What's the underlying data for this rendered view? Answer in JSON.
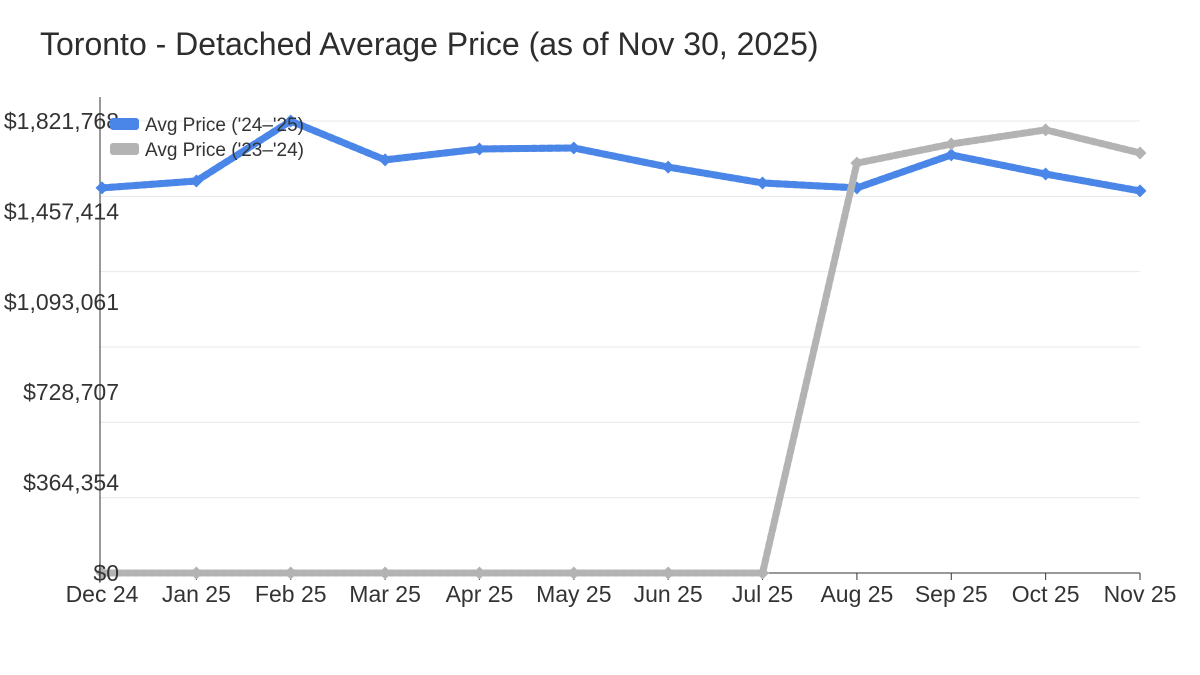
{
  "title": "Toronto - Detached Average Price (as of Nov 30, 2025)",
  "colors": {
    "title_text": "#2d2d2d",
    "axis_text": "#333333",
    "axis_line": "#333333",
    "gridline": "#e8e8e8",
    "series1": "#4a85e8",
    "series1_stripe": "#6d9bf0",
    "series2": "#b3b3b3",
    "series2_stripe": "#c9c9c9"
  },
  "chart_data": {
    "type": "line",
    "title": "Toronto - Detached Average Price (as of Nov 30, 2025)",
    "categories": [
      "Dec 24",
      "Jan 25",
      "Feb 25",
      "Mar 25",
      "Apr 25",
      "May 25",
      "Jun 25",
      "Jul 25",
      "Aug 25",
      "Sep 25",
      "Oct 25",
      "Nov 25"
    ],
    "series": [
      {
        "name": "Avg Price ('24–'25)",
        "slug": "avg-price-24-25",
        "color": "#4a85e8",
        "stripe_color": "#6d9bf0",
        "marker": "diamond",
        "values": [
          1552000,
          1580000,
          1821768,
          1665000,
          1709000,
          1713000,
          1636000,
          1572000,
          1552000,
          1685000,
          1608000,
          1540000
        ]
      },
      {
        "name": "Avg Price ('23–'24)",
        "slug": "avg-price-23-24",
        "color": "#b3b3b3",
        "stripe_color": "#c9c9c9",
        "marker": "diamond",
        "values": [
          0,
          0,
          0,
          0,
          0,
          0,
          0,
          0,
          1652000,
          1729000,
          1786000,
          1693000
        ]
      }
    ],
    "ylim": [
      0,
      1821768
    ],
    "ytick_labels": [
      "$0",
      "$364,354",
      "$728,707",
      "$1,093,061",
      "$1,457,414",
      "$1,821,768"
    ],
    "grid": "horizontal",
    "gridline_count": 7,
    "legend_position": "top-left-inside"
  }
}
